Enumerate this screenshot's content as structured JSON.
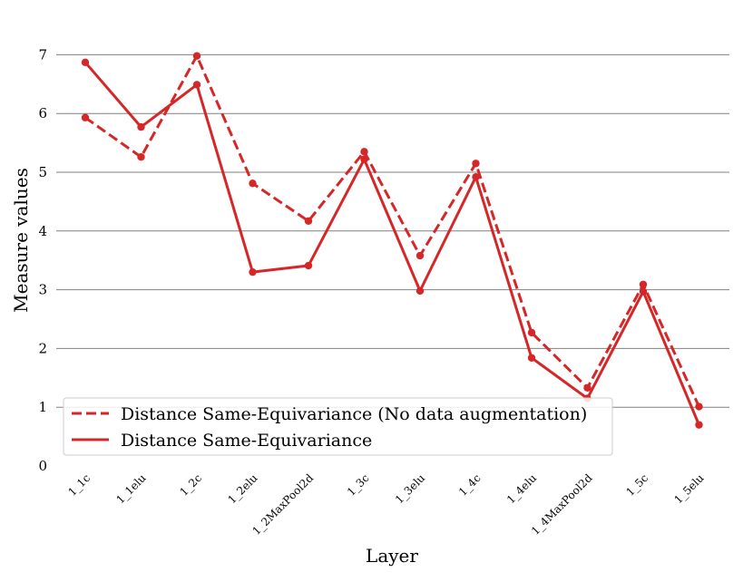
{
  "chart_data": {
    "type": "line",
    "xlabel": "Layer",
    "ylabel": "Measure values",
    "categories": [
      "1_1c",
      "1_1elu",
      "1_2c",
      "1_2elu",
      "1_2MaxPool2d",
      "1_3c",
      "1_3elu",
      "1_4c",
      "1_4elu",
      "1_4MaxPool2d",
      "1_5c",
      "1_5elu"
    ],
    "ylim": [
      0,
      7.5
    ],
    "yticks": [
      "0",
      "1",
      "2",
      "3",
      "4",
      "5",
      "6",
      "7"
    ],
    "grid": "horizontal",
    "legend_position": "lower-left",
    "color": "#d62728",
    "series": [
      {
        "name": "Distance Same-Equivariance (No data augmentation)",
        "style": "dashed",
        "values": [
          5.93,
          5.26,
          6.98,
          4.81,
          4.17,
          5.35,
          3.58,
          5.15,
          2.27,
          1.33,
          3.09,
          1.01
        ]
      },
      {
        "name": "Distance Same-Equivariance",
        "style": "solid",
        "values": [
          6.87,
          5.77,
          6.49,
          3.3,
          3.41,
          5.22,
          2.98,
          4.92,
          1.84,
          1.15,
          2.97,
          0.7
        ]
      }
    ]
  }
}
